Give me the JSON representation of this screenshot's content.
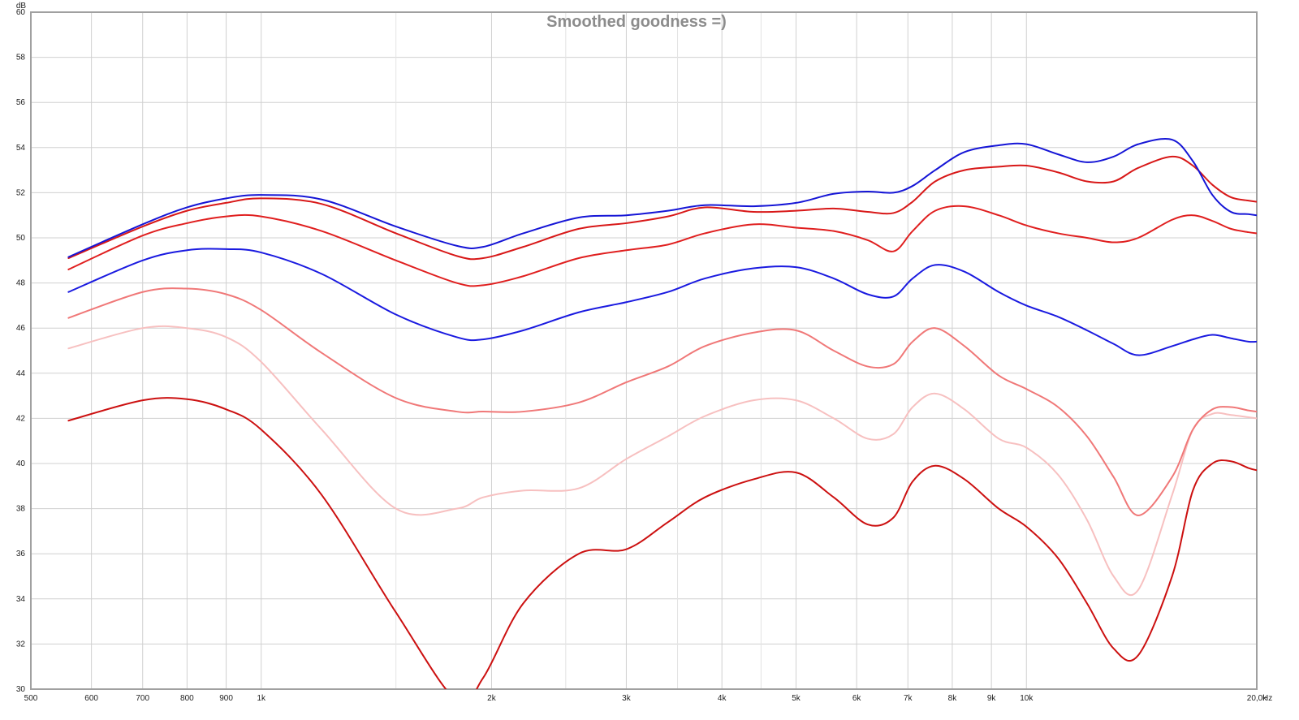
{
  "chart_data": {
    "type": "line",
    "title": "Smoothed goodness =)",
    "ylabel": "dB",
    "xunit": "Hz",
    "xscale": "log",
    "xlim": [
      500,
      20000
    ],
    "ylim": [
      30,
      60
    ],
    "grid": true,
    "legend": "none",
    "y_ticks": [
      30,
      32,
      34,
      36,
      38,
      40,
      42,
      44,
      46,
      48,
      50,
      52,
      54,
      56,
      58,
      60
    ],
    "x_ticks": [
      {
        "value": 500,
        "label": "500"
      },
      {
        "value": 600,
        "label": "600"
      },
      {
        "value": 700,
        "label": "700"
      },
      {
        "value": 800,
        "label": "800"
      },
      {
        "value": 900,
        "label": "900"
      },
      {
        "value": 1000,
        "label": "1k"
      },
      {
        "value": 2000,
        "label": "2k"
      },
      {
        "value": 3000,
        "label": "3k"
      },
      {
        "value": 4000,
        "label": "4k"
      },
      {
        "value": 5000,
        "label": "5k"
      },
      {
        "value": 6000,
        "label": "6k"
      },
      {
        "value": 7000,
        "label": "7k"
      },
      {
        "value": 8000,
        "label": "8k"
      },
      {
        "value": 9000,
        "label": "9k"
      },
      {
        "value": 10000,
        "label": "10k"
      },
      {
        "value": 20000,
        "label": "20,0k"
      }
    ],
    "x_minor_grid": [
      1500,
      2500,
      3500,
      4500
    ],
    "series": [
      {
        "color": "#1515d6",
        "x": [
          560,
          700,
          800,
          900,
          1000,
          1200,
          1500,
          1800,
          1950,
          2200,
          2600,
          3000,
          3400,
          3800,
          4400,
          5000,
          5600,
          6200,
          6700,
          7100,
          7600,
          8300,
          9200,
          10000,
          11000,
          12000,
          13000,
          14000,
          15500,
          16500,
          17500,
          18500,
          19500,
          20000
        ],
        "y": [
          49.15,
          50.6,
          51.35,
          51.75,
          51.9,
          51.7,
          50.5,
          49.65,
          49.6,
          50.2,
          50.9,
          51.0,
          51.2,
          51.45,
          51.4,
          51.55,
          51.95,
          52.05,
          52.0,
          52.3,
          53.0,
          53.8,
          54.1,
          54.15,
          53.7,
          53.35,
          53.6,
          54.15,
          54.35,
          53.4,
          51.9,
          51.15,
          51.05,
          51.0
        ]
      },
      {
        "color": "#d81818",
        "x": [
          560,
          700,
          800,
          900,
          1000,
          1200,
          1500,
          1800,
          1950,
          2200,
          2600,
          3000,
          3400,
          3800,
          4400,
          5000,
          5600,
          6200,
          6700,
          7100,
          7600,
          8300,
          9200,
          10000,
          11000,
          12000,
          13000,
          14000,
          15500,
          16500,
          17500,
          18500,
          19500,
          20000
        ],
        "y": [
          49.1,
          50.5,
          51.2,
          51.55,
          51.75,
          51.5,
          50.2,
          49.2,
          49.1,
          49.6,
          50.4,
          50.65,
          50.95,
          51.35,
          51.15,
          51.2,
          51.3,
          51.15,
          51.1,
          51.6,
          52.5,
          53.0,
          53.15,
          53.2,
          52.9,
          52.5,
          52.5,
          53.1,
          53.6,
          53.2,
          52.35,
          51.8,
          51.65,
          51.6
        ]
      },
      {
        "color": "#e01f1f",
        "x": [
          560,
          700,
          800,
          900,
          1000,
          1200,
          1500,
          1800,
          1950,
          2200,
          2600,
          3000,
          3400,
          3800,
          4400,
          5000,
          5600,
          6200,
          6700,
          7100,
          7600,
          8300,
          9200,
          10000,
          11000,
          12000,
          13000,
          14000,
          15500,
          16500,
          17500,
          18500,
          19500,
          20000
        ],
        "y": [
          48.6,
          50.1,
          50.65,
          50.95,
          50.95,
          50.3,
          49.0,
          48.0,
          47.9,
          48.3,
          49.1,
          49.45,
          49.7,
          50.2,
          50.6,
          50.45,
          50.3,
          49.9,
          49.4,
          50.3,
          51.2,
          51.4,
          51.0,
          50.55,
          50.2,
          50.0,
          49.8,
          50.0,
          50.8,
          51.0,
          50.75,
          50.4,
          50.25,
          50.2
        ]
      },
      {
        "color": "#1a1ae0",
        "x": [
          560,
          700,
          800,
          900,
          1000,
          1200,
          1500,
          1800,
          1950,
          2200,
          2600,
          3000,
          3400,
          3800,
          4400,
          5000,
          5600,
          6200,
          6700,
          7100,
          7600,
          8300,
          9200,
          10000,
          11000,
          12000,
          13000,
          14000,
          15500,
          16500,
          17500,
          18500,
          19500,
          20000
        ],
        "y": [
          47.6,
          49.0,
          49.45,
          49.5,
          49.35,
          48.4,
          46.6,
          45.6,
          45.5,
          45.9,
          46.7,
          47.15,
          47.6,
          48.2,
          48.65,
          48.7,
          48.2,
          47.5,
          47.4,
          48.2,
          48.8,
          48.5,
          47.6,
          47.0,
          46.5,
          45.9,
          45.3,
          44.8,
          45.2,
          45.5,
          45.7,
          45.55,
          45.4,
          45.4
        ]
      },
      {
        "color": "#f07878",
        "x": [
          560,
          700,
          800,
          900,
          1000,
          1200,
          1500,
          1800,
          1950,
          2200,
          2600,
          3000,
          3400,
          3800,
          4400,
          5000,
          5600,
          6200,
          6700,
          7100,
          7600,
          8300,
          9200,
          10000,
          11000,
          12000,
          13000,
          14000,
          15500,
          16500,
          17500,
          18500,
          19500,
          20000
        ],
        "y": [
          46.45,
          47.6,
          47.75,
          47.5,
          46.8,
          44.9,
          42.9,
          42.3,
          42.3,
          42.3,
          42.7,
          43.6,
          44.3,
          45.2,
          45.8,
          45.9,
          45.0,
          44.3,
          44.4,
          45.4,
          46.0,
          45.2,
          43.9,
          43.3,
          42.5,
          41.2,
          39.4,
          37.7,
          39.4,
          41.5,
          42.4,
          42.5,
          42.35,
          42.3
        ]
      },
      {
        "color": "#f7c0c0",
        "x": [
          560,
          700,
          800,
          900,
          1000,
          1200,
          1500,
          1800,
          1950,
          2200,
          2600,
          3000,
          3400,
          3800,
          4400,
          5000,
          5600,
          6200,
          6700,
          7100,
          7600,
          8300,
          9200,
          10000,
          11000,
          12000,
          13000,
          14000,
          15500,
          16500,
          17500,
          18500,
          19500,
          20000
        ],
        "y": [
          45.1,
          46.0,
          46.0,
          45.6,
          44.5,
          41.5,
          38.0,
          38.0,
          38.5,
          38.8,
          38.9,
          40.2,
          41.2,
          42.1,
          42.8,
          42.8,
          42.0,
          41.1,
          41.3,
          42.5,
          43.1,
          42.4,
          41.1,
          40.7,
          39.5,
          37.5,
          35.0,
          34.4,
          38.6,
          41.5,
          42.2,
          42.15,
          42.05,
          42.0
        ]
      },
      {
        "color": "#cc1010",
        "x": [
          560,
          700,
          800,
          900,
          1000,
          1200,
          1500,
          1800,
          1950,
          2200,
          2600,
          3000,
          3400,
          3800,
          4400,
          5000,
          5600,
          6200,
          6700,
          7100,
          7600,
          8300,
          9200,
          10000,
          11000,
          12000,
          13000,
          14000,
          15500,
          16500,
          17500,
          18500,
          19500,
          20000
        ],
        "y": [
          41.9,
          42.8,
          42.85,
          42.4,
          41.5,
          38.6,
          33.4,
          29.5,
          30.5,
          33.8,
          36.0,
          36.2,
          37.4,
          38.5,
          39.3,
          39.6,
          38.5,
          37.3,
          37.6,
          39.2,
          39.9,
          39.3,
          38.0,
          37.2,
          35.8,
          33.8,
          31.8,
          31.5,
          35.0,
          38.8,
          40.0,
          40.1,
          39.8,
          39.7
        ]
      }
    ]
  }
}
